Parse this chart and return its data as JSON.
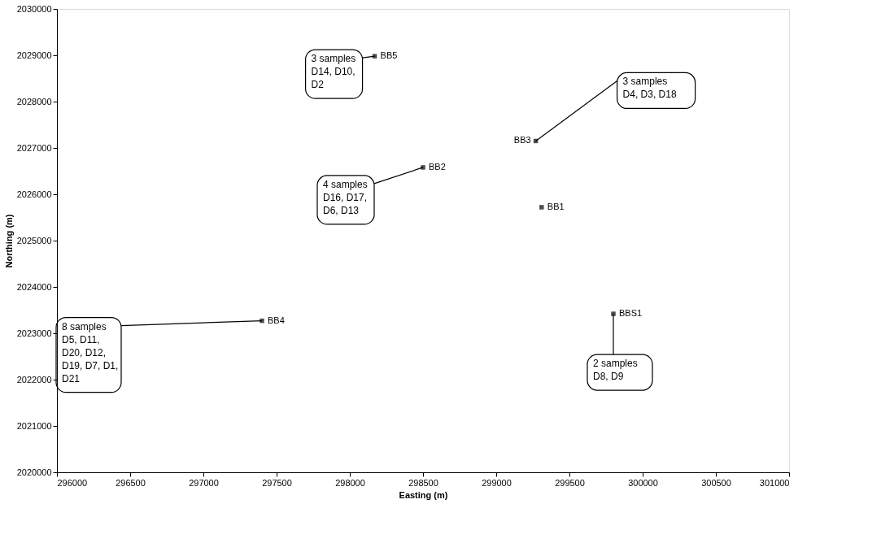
{
  "chart_data": {
    "type": "scatter",
    "xlabel": "Easting (m)",
    "ylabel": "Northing (m)",
    "x": [
      298170,
      298500,
      299270,
      299310,
      297400,
      299800
    ],
    "series": [
      {
        "color": "#000000",
        "values": [
          2028980,
          2026580,
          2027150,
          2025720,
          2023270,
          2023420
        ]
      }
    ],
    "xlim": [
      296000,
      301000
    ],
    "ylim": [
      2020000,
      2030000
    ],
    "xticks": [
      296000,
      296500,
      297000,
      297500,
      298000,
      298500,
      299000,
      299500,
      300000,
      300500,
      301000
    ],
    "yticks": [
      2020000,
      2021000,
      2022000,
      2023000,
      2024000,
      2025000,
      2026000,
      2027000,
      2028000,
      2029000,
      2030000
    ],
    "marker": "square",
    "grid": false,
    "legend": false,
    "annotations": [
      {
        "text": "BB5",
        "x": 298170,
        "y": 2028980
      },
      {
        "text": "BB2",
        "x": 298500,
        "y": 2026580
      },
      {
        "text": "BB3",
        "x": 299270,
        "y": 2027150
      },
      {
        "text": "BB1",
        "x": 299310,
        "y": 2025720
      },
      {
        "text": "BB4",
        "x": 297400,
        "y": 2023270
      },
      {
        "text": "BBS1",
        "x": 299800,
        "y": 2023420
      },
      {
        "text": "3 samples\nD14, D10,\nD2",
        "x": 298170,
        "y": 2028980
      },
      {
        "text": "4 samples\nD16, D17,\nD6, D13",
        "x": 298500,
        "y": 2026580
      },
      {
        "text": "3 samples\nD4, D3, D18",
        "x": 299270,
        "y": 2027150
      },
      {
        "text": "8 samples\nD5, D11,\nD20, D12,\nD19, D7, D1,\nD21",
        "x": 297400,
        "y": 2023270
      },
      {
        "text": "2 samples\nD8, D9",
        "x": 299800,
        "y": 2023420
      }
    ]
  }
}
